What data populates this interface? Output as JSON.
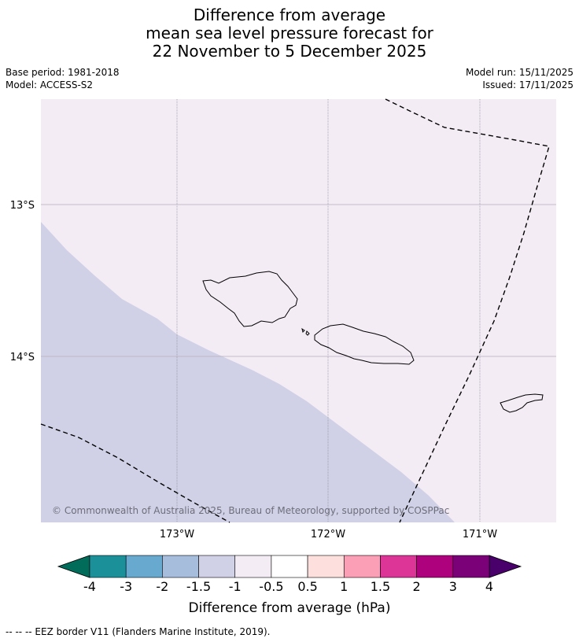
{
  "title": {
    "line1": "Difference from average",
    "line2": "mean sea level pressure forecast for",
    "line3": "22 November to 5 December 2025"
  },
  "meta": {
    "base_period": "Base period: 1981-2018",
    "model": "Model: ACCESS-S2",
    "model_run": "Model run: 15/11/2025",
    "issued": "Issued: 17/11/2025"
  },
  "map": {
    "lat_labels": [
      "13°S",
      "14°S"
    ],
    "lon_labels": [
      "173°W",
      "172°W",
      "171°W"
    ],
    "copyright": "© Commonwealth of Australia 2025, Bureau of Meteorology, supported by COSPPac",
    "colors": {
      "background_class": "#f4ecf5",
      "lower_class": "#d0d1e6",
      "grid": "#a0a0a0",
      "coast": "#000000"
    }
  },
  "colorbar": {
    "label": "Difference from average (hPa)",
    "ticks": [
      "-4",
      "-3",
      "-2",
      "-1.5",
      "-1",
      "-0.5",
      "0.5",
      "1",
      "1.5",
      "2",
      "3",
      "4"
    ],
    "under_color": "#016c59",
    "over_color": "#49006a",
    "segment_colors": [
      "#1c9099",
      "#67a9cf",
      "#a6bddb",
      "#d0d1e6",
      "#f4ecf5",
      "#ffffff",
      "#fde0dd",
      "#fa9fb5",
      "#dd3497",
      "#ae017e",
      "#7a0177"
    ]
  },
  "footer": "--  --  -- EEZ border V11 (Flanders Marine Institute, 2019)."
}
